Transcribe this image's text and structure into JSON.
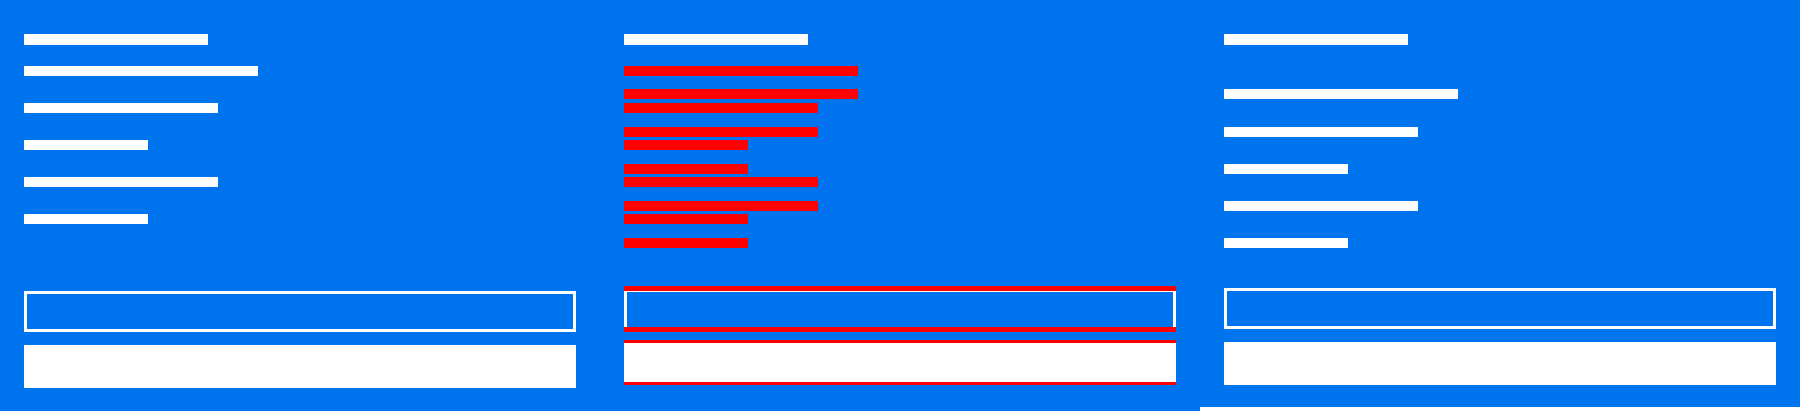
{
  "colors": {
    "background": "#0073ef",
    "skeleton": "#ffffff",
    "highlight": "#ff0000"
  },
  "panels": [
    {
      "name": "left-panel",
      "state": "default"
    },
    {
      "name": "middle-panel",
      "state": "highlighted"
    },
    {
      "name": "right-panel",
      "state": "default"
    }
  ]
}
